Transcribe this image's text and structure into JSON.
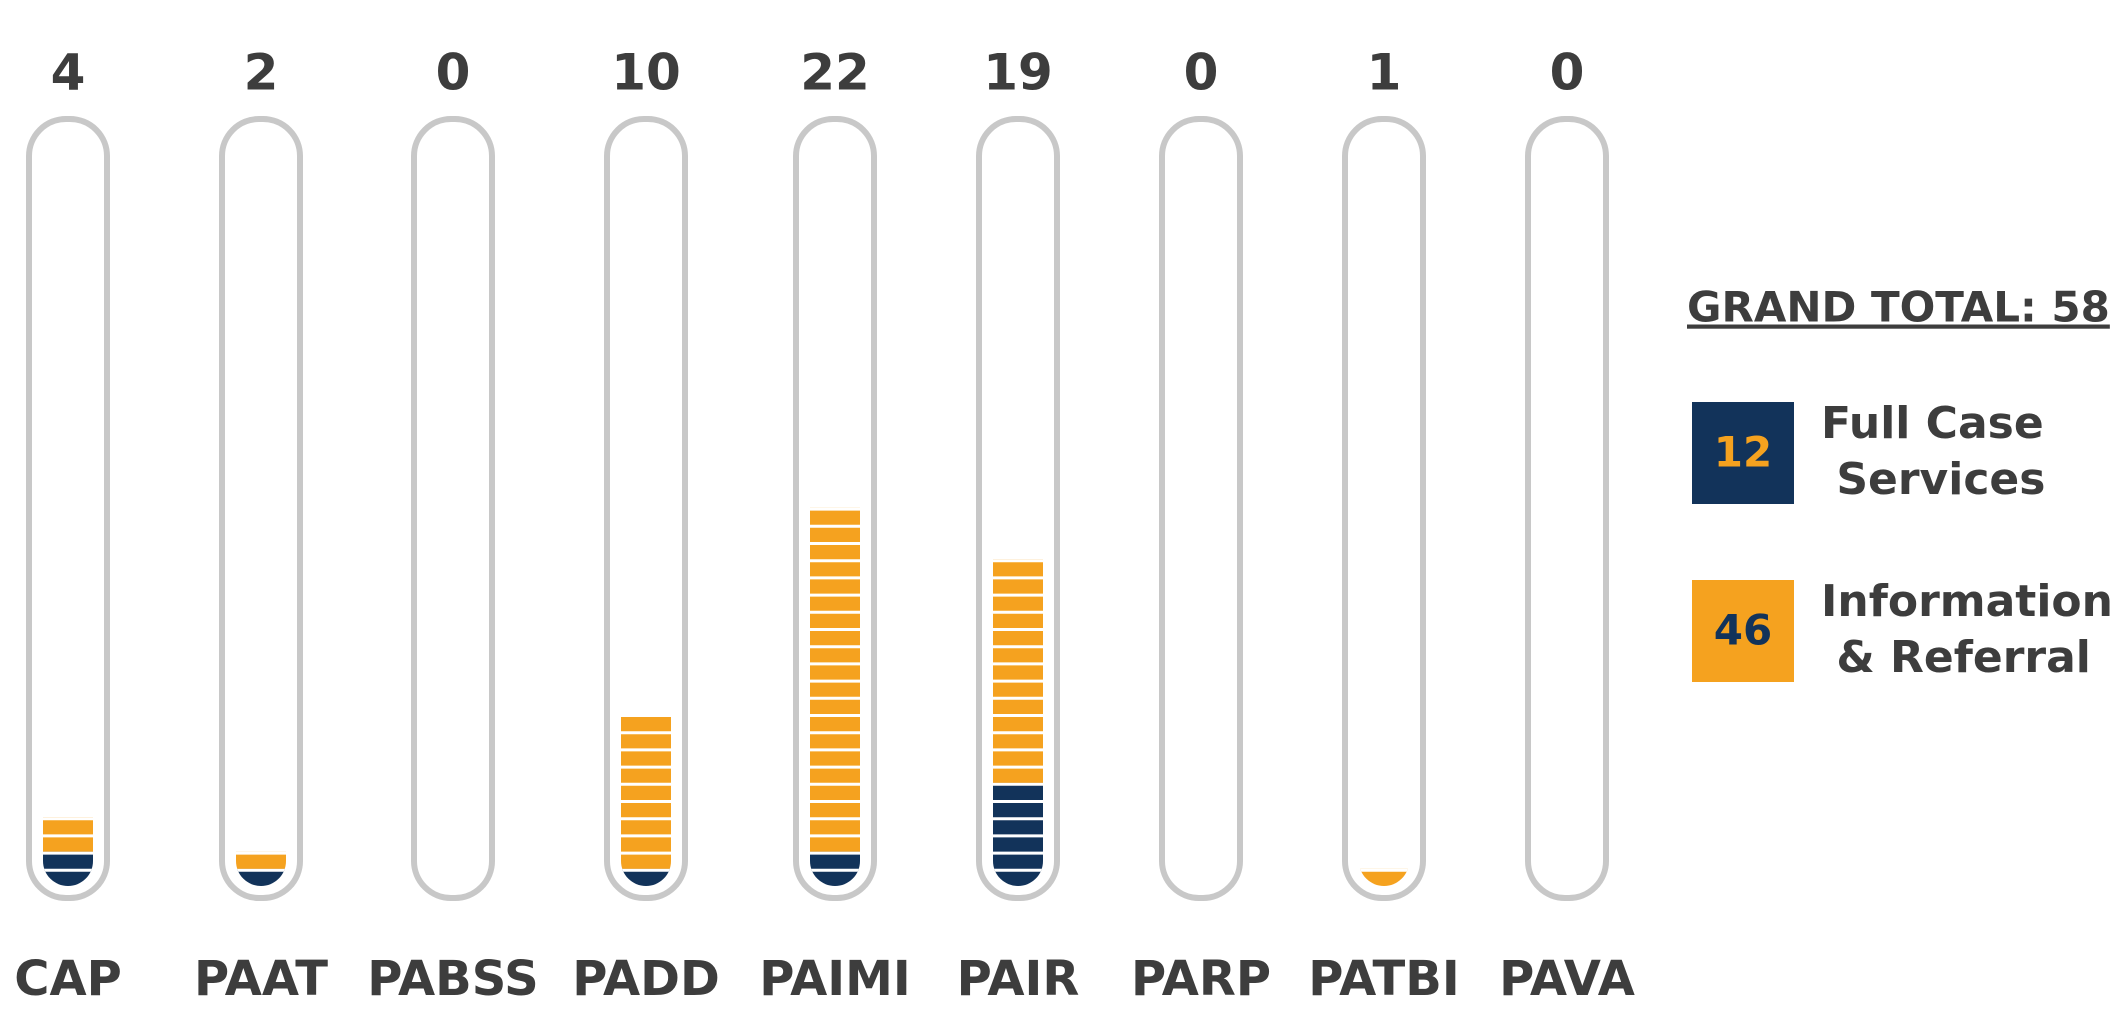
{
  "chart_data": {
    "type": "tube",
    "title": "GRAND TOTAL: 58",
    "categories": [
      "CAP",
      "PAAT",
      "PABSS",
      "PADD",
      "PAIMI",
      "PAIR",
      "PARP",
      "PATBI",
      "PAVA"
    ],
    "totals": [
      4,
      2,
      0,
      10,
      22,
      19,
      0,
      1,
      0
    ],
    "series": [
      {
        "name": "Full Case Services",
        "color": "#12335a",
        "total": 12,
        "values": [
          2,
          1,
          0,
          1,
          2,
          6,
          0,
          0,
          0
        ]
      },
      {
        "name": "Information & Referral",
        "color": "#f5a21f",
        "total": 46,
        "values": [
          2,
          1,
          0,
          9,
          20,
          13,
          0,
          1,
          0
        ]
      }
    ]
  }
}
